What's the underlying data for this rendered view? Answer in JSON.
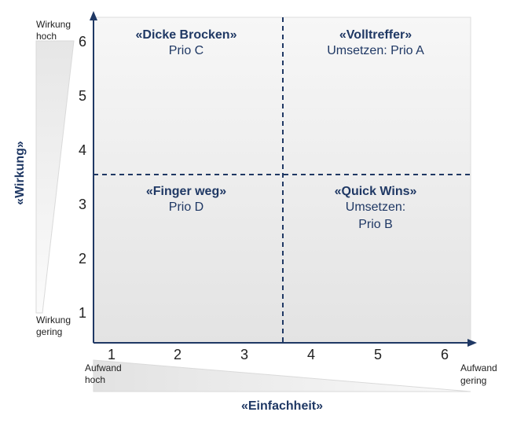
{
  "colors": {
    "axis": "#1f3864",
    "divider": "#1f3864",
    "text_dark": "#1f3864",
    "plot_bg_top": "#f7f7f7",
    "plot_bg_bottom": "#e3e3e3"
  },
  "x_axis": {
    "title": "«Einfachheit»",
    "ticks": [
      "1",
      "2",
      "3",
      "4",
      "5",
      "6"
    ],
    "low_label_line1": "Aufwand",
    "low_label_line2": "hoch",
    "high_label_line1": "Aufwand",
    "high_label_line2": "gering"
  },
  "y_axis": {
    "title": "«Wirkung»",
    "ticks": [
      "1",
      "2",
      "3",
      "4",
      "5",
      "6"
    ],
    "high_label_line1": "Wirkung",
    "high_label_line2": "hoch",
    "low_label_line1": "Wirkung",
    "low_label_line2": "gering"
  },
  "quadrants": {
    "top_left": {
      "title": "«Dicke Brocken»",
      "line1": "Prio C"
    },
    "top_right": {
      "title": "«Volltreffer»",
      "line1": "Umsetzen: Prio A"
    },
    "bottom_left": {
      "title": "«Finger weg»",
      "line1": "Prio D"
    },
    "bottom_right": {
      "title": "«Quick Wins»",
      "line1": "Umsetzen:",
      "line2": "Prio B"
    }
  }
}
